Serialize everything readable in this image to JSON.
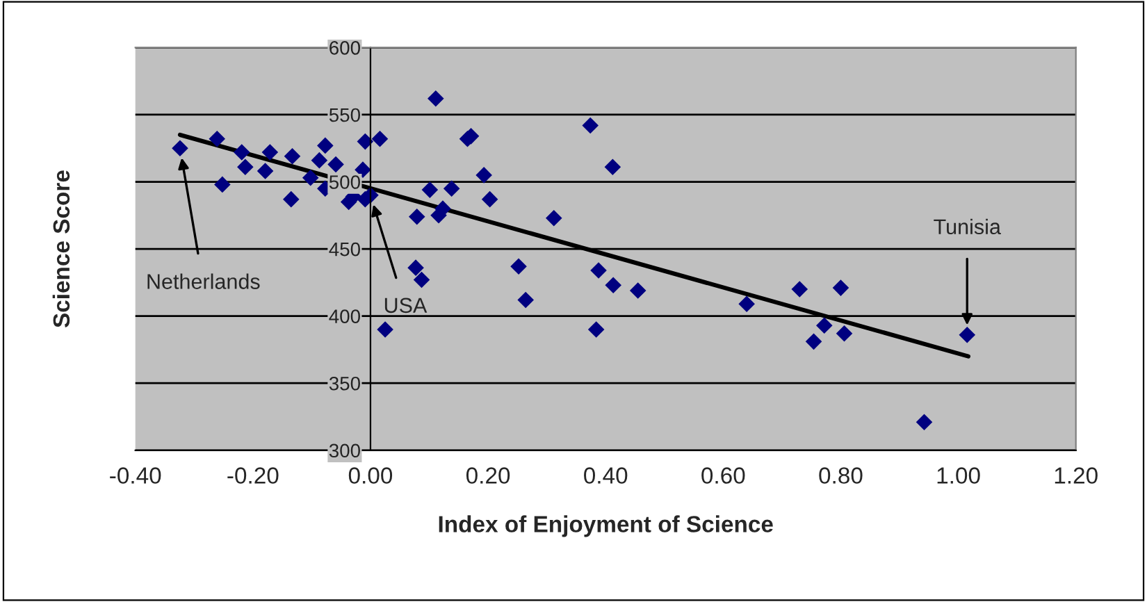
{
  "chart_data": {
    "type": "scatter",
    "xlabel": "Index of Enjoyment of Science",
    "ylabel": "Science Score",
    "xlim": [
      -0.4,
      1.2
    ],
    "xticks": [
      {
        "value": -0.4,
        "label": "-0.40"
      },
      {
        "value": -0.2,
        "label": "-0.20"
      },
      {
        "value": 0,
        "label": "0.00"
      },
      {
        "value": 0.2,
        "label": "0.20"
      },
      {
        "value": 0.4,
        "label": "0.40"
      },
      {
        "value": 0.6,
        "label": "0.60"
      },
      {
        "value": 0.8,
        "label": "0.80"
      },
      {
        "value": 1.0,
        "label": "1.00"
      },
      {
        "value": 1.2,
        "label": "1.20"
      }
    ],
    "ylim": [
      300,
      600
    ],
    "yticks": [
      300,
      350,
      400,
      450,
      500,
      550,
      600
    ],
    "grid": "y",
    "legend": false,
    "marker": "diamond",
    "series": [
      {
        "type": "scatter",
        "color": "#000080",
        "x": [
          -0.324,
          -0.261,
          -0.252,
          -0.219,
          -0.213,
          -0.179,
          -0.171,
          -0.135,
          -0.133,
          -0.102,
          -0.087,
          -0.077,
          -0.077,
          -0.059,
          -0.037,
          -0.029,
          -0.013,
          -0.009,
          -0.009,
          0.0,
          0.016,
          0.025,
          0.077,
          0.087,
          0.079,
          0.111,
          0.101,
          0.116,
          0.123,
          0.138,
          0.165,
          0.171,
          0.193,
          0.203,
          0.312,
          0.252,
          0.264,
          0.374,
          0.412,
          0.388,
          0.413,
          0.384,
          0.455,
          0.64,
          0.73,
          0.8,
          0.772,
          0.754,
          0.806,
          1.015,
          0.942
        ],
        "values": [
          525,
          532,
          498,
          522,
          511,
          508,
          522,
          487,
          519,
          503,
          516,
          527,
          495,
          513,
          485,
          489,
          509,
          530,
          487,
          490,
          532,
          390,
          436,
          427,
          474,
          562,
          494,
          475,
          480,
          495,
          532,
          534,
          505,
          487,
          473,
          437,
          412,
          542,
          511,
          434,
          423,
          390,
          419,
          409,
          420,
          421,
          393,
          381,
          387,
          386,
          321
        ]
      },
      {
        "type": "line",
        "color": "#000000",
        "marker": "none",
        "x": [
          -0.324,
          1.017
        ],
        "values": [
          535,
          370
        ]
      }
    ],
    "annotations": [
      {
        "text": "Netherlands",
        "x": -0.324,
        "y": 525
      },
      {
        "text": "USA",
        "x": 0.0,
        "y": 490
      },
      {
        "text": "Tunisia",
        "x": 1.015,
        "y": 386
      }
    ]
  }
}
